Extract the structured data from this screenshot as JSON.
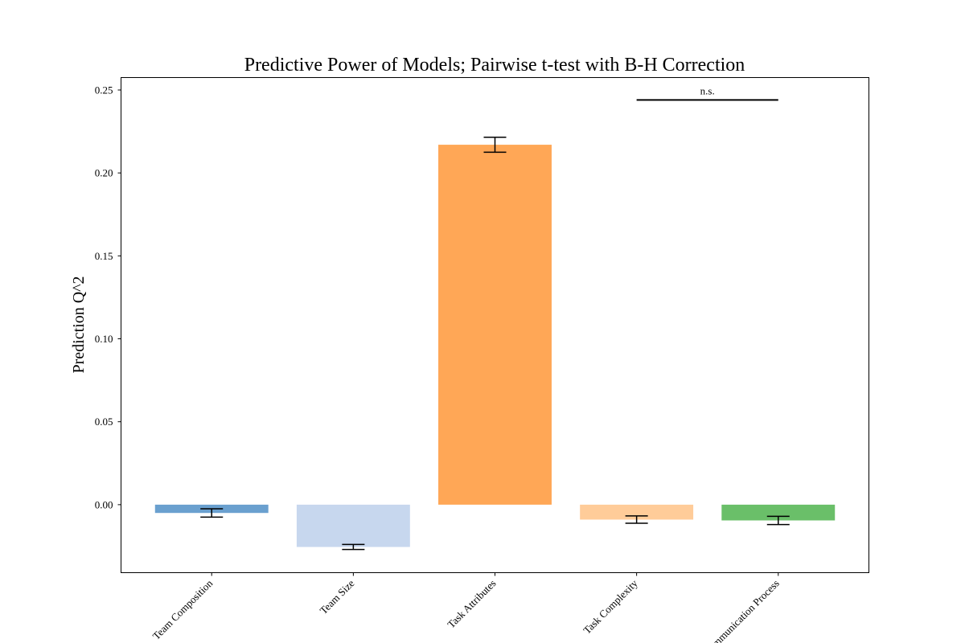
{
  "chart_data": {
    "type": "bar",
    "title": "Predictive Power of Models; Pairwise t-test with B-H Correction",
    "xlabel": "",
    "ylabel": "Prediction Q^2",
    "categories": [
      "Team Composition",
      "Team Size",
      "Task Attributes",
      "Task Complexity",
      "Communication Process"
    ],
    "values": [
      -0.005,
      -0.0255,
      0.217,
      -0.009,
      -0.0095
    ],
    "errors": [
      0.0025,
      0.0015,
      0.0045,
      0.0022,
      0.0025
    ],
    "colors": [
      "#6aa0cf",
      "#c7d7ee",
      "#ffa756",
      "#ffcc99",
      "#6abf69"
    ],
    "ylim": [
      -0.041,
      0.2575
    ],
    "yticks": [
      0.0,
      0.05,
      0.1,
      0.15,
      0.2,
      0.25
    ],
    "ytick_labels": [
      "0.00",
      "0.05",
      "0.10",
      "0.15",
      "0.20",
      "0.25"
    ],
    "grid": false,
    "annotations": [
      {
        "text": "n.s.",
        "from_index": 3,
        "to_index": 4,
        "y": 0.244
      }
    ]
  }
}
